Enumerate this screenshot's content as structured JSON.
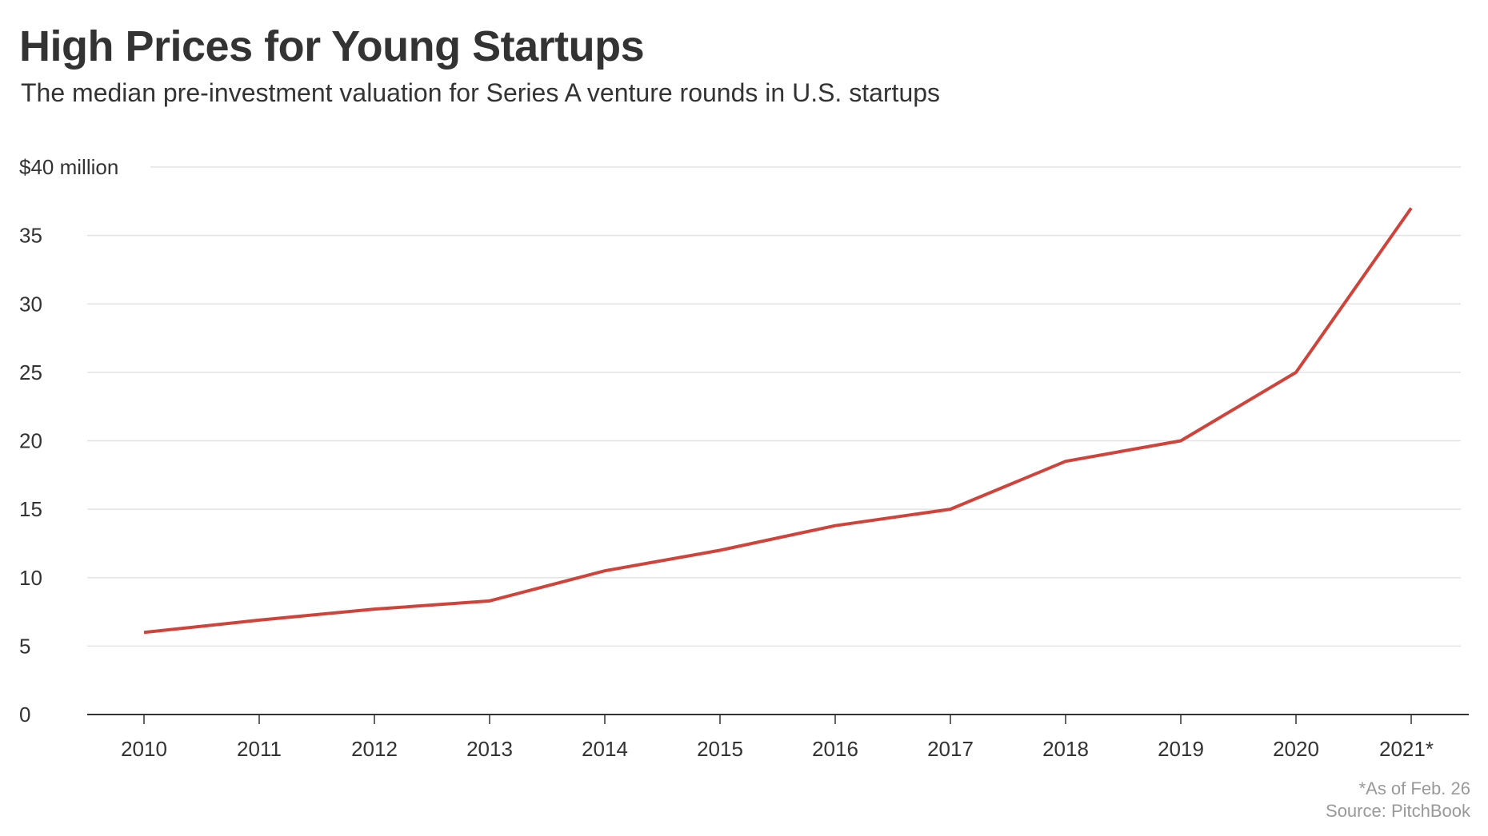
{
  "chart_data": {
    "type": "line",
    "title": "High Prices for Young Startups",
    "subtitle": "The median pre-investment valuation for Series A venture rounds in U.S. startups",
    "categories": [
      "2010",
      "2011",
      "2012",
      "2013",
      "2014",
      "2015",
      "2016",
      "2017",
      "2018",
      "2019",
      "2020",
      "2021*"
    ],
    "series": [
      {
        "values": [
          6,
          6.9,
          7.7,
          8.3,
          10.5,
          12,
          13.8,
          15,
          18.5,
          20,
          25,
          37
        ],
        "color": "#d0433a"
      }
    ],
    "y_ticks": [
      0,
      5,
      10,
      15,
      20,
      25,
      30,
      35,
      40
    ],
    "y_tick_labels": [
      "0",
      "5",
      "10",
      "15",
      "20",
      "25",
      "30",
      "35",
      "$40 million"
    ],
    "ylim": [
      0,
      40
    ],
    "grid": true,
    "grid_color": "#e3e3e3",
    "footnotes": [
      "*As of Feb. 26",
      "Source: PitchBook"
    ]
  }
}
